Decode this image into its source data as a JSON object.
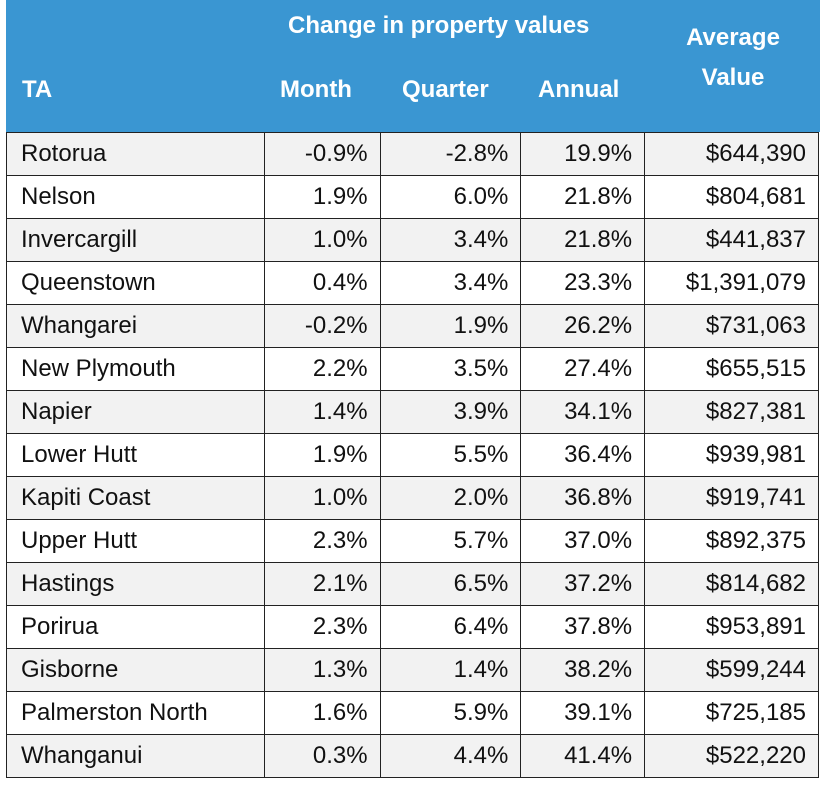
{
  "chart_data": {
    "type": "table",
    "group_header": "Change in property values",
    "columns": [
      "TA",
      "Month",
      "Quarter",
      "Annual",
      "Average Value"
    ],
    "average_value_label": [
      "Average",
      "Value"
    ],
    "header_color": "#3a96d2",
    "rows": [
      [
        "Rotorua",
        "-0.9%",
        "-2.8%",
        "19.9%",
        "$644,390"
      ],
      [
        "Nelson",
        "1.9%",
        "6.0%",
        "21.8%",
        "$804,681"
      ],
      [
        "Invercargill",
        "1.0%",
        "3.4%",
        "21.8%",
        "$441,837"
      ],
      [
        "Queenstown",
        "0.4%",
        "3.4%",
        "23.3%",
        "$1,391,079"
      ],
      [
        "Whangarei",
        "-0.2%",
        "1.9%",
        "26.2%",
        "$731,063"
      ],
      [
        "New Plymouth",
        "2.2%",
        "3.5%",
        "27.4%",
        "$655,515"
      ],
      [
        "Napier",
        "1.4%",
        "3.9%",
        "34.1%",
        "$827,381"
      ],
      [
        "Lower Hutt",
        "1.9%",
        "5.5%",
        "36.4%",
        "$939,981"
      ],
      [
        "Kapiti Coast",
        "1.0%",
        "2.0%",
        "36.8%",
        "$919,741"
      ],
      [
        "Upper Hutt",
        "2.3%",
        "5.7%",
        "37.0%",
        "$892,375"
      ],
      [
        "Hastings",
        "2.1%",
        "6.5%",
        "37.2%",
        "$814,682"
      ],
      [
        "Porirua",
        "2.3%",
        "6.4%",
        "37.8%",
        "$953,891"
      ],
      [
        "Gisborne",
        "1.3%",
        "1.4%",
        "38.2%",
        "$599,244"
      ],
      [
        "Palmerston North",
        "1.6%",
        "5.9%",
        "39.1%",
        "$725,185"
      ],
      [
        "Whanganui",
        "0.3%",
        "4.4%",
        "41.4%",
        "$522,220"
      ]
    ]
  }
}
